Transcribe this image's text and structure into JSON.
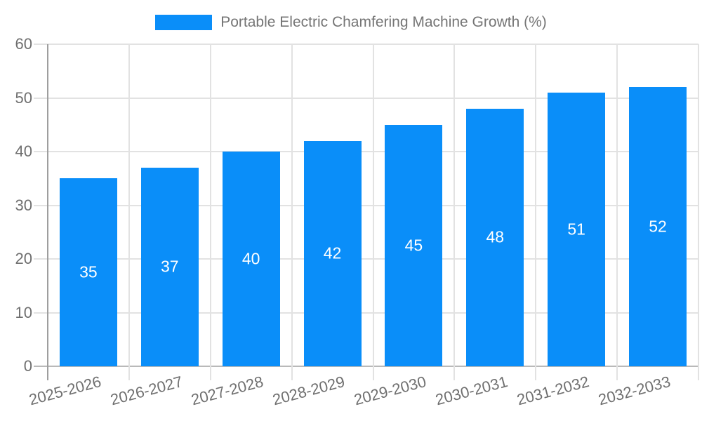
{
  "legend": {
    "label": "Portable Electric Chamfering Machine Growth (%)"
  },
  "chart_data": {
    "type": "bar",
    "title": "Portable Electric Chamfering Machine Growth (%)",
    "categories": [
      "2025-2026",
      "2026-2027",
      "2027-2028",
      "2028-2029",
      "2029-2030",
      "2030-2031",
      "2031-2032",
      "2032-2033"
    ],
    "values": [
      35,
      37,
      40,
      42,
      45,
      48,
      51,
      52
    ],
    "xlabel": "",
    "ylabel": "",
    "ylim": [
      0,
      60
    ],
    "ytick_step": 10,
    "yticks": [
      "0",
      "10",
      "20",
      "30",
      "40",
      "50",
      "60"
    ],
    "grid": true,
    "legend_position": "top-center",
    "bar_color": "#0a8ef9",
    "value_label_color": "#ffffff",
    "axis_label_color": "#6f6f6f",
    "legend_text_color": "#757575",
    "grid_color": "#e2e2e2",
    "axis_line_color": "#9e9e9e",
    "baseline_color": "#b9b9b9",
    "background_color": "#ffffff"
  }
}
